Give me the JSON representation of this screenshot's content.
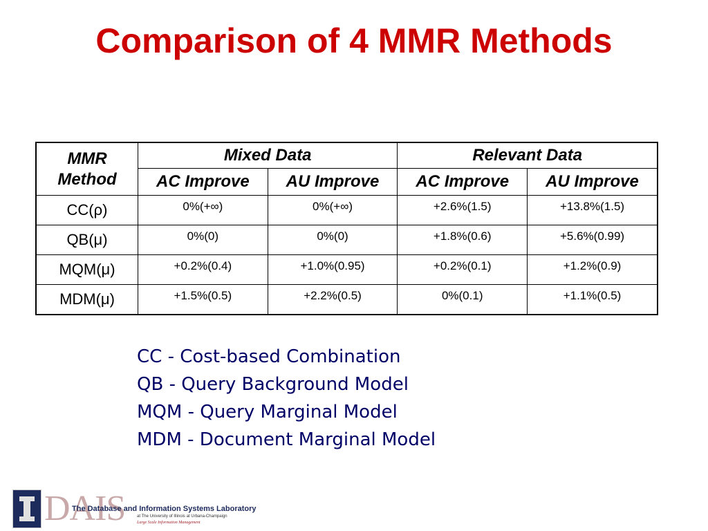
{
  "title": "Comparison of 4 MMR Methods",
  "table": {
    "corner": [
      "MMR",
      "Method"
    ],
    "groups": [
      "Mixed Data",
      "Relevant Data"
    ],
    "subheaders": [
      "AC Improve",
      "AU Improve",
      "AC Improve",
      "AU Improve"
    ],
    "rows": [
      {
        "method": "CC(ρ)",
        "cells": [
          "0%(+∞)",
          "0%(+∞)",
          "+2.6%(1.5)",
          "+13.8%(1.5)"
        ]
      },
      {
        "method": "QB(μ)",
        "cells": [
          "0%(0)",
          "0%(0)",
          "+1.8%(0.6)",
          "+5.6%(0.99)"
        ]
      },
      {
        "method": "MQM(μ)",
        "cells": [
          "+0.2%(0.4)",
          "+1.0%(0.95)",
          "+0.2%(0.1)",
          "+1.2%(0.9)"
        ]
      },
      {
        "method": "MDM(μ)",
        "cells": [
          "+1.5%(0.5)",
          "+2.2%(0.5)",
          "0%(0.1)",
          "+1.1%(0.5)"
        ]
      }
    ]
  },
  "legend": [
    "CC - Cost-based Combination",
    "QB - Query Background Model",
    "MQM - Query Marginal Model",
    "MDM - Document Marginal Model"
  ],
  "logo": {
    "word": "DAIS",
    "lab": "The Database and Information Systems Laboratory",
    "sub1": "at The University of Illinois at Urbana-Champaign",
    "sub2": "Large Scale Information Management"
  },
  "colors": {
    "title": "#cc0000",
    "legend": "#000066",
    "logo_navy": "#1c2a5c"
  }
}
